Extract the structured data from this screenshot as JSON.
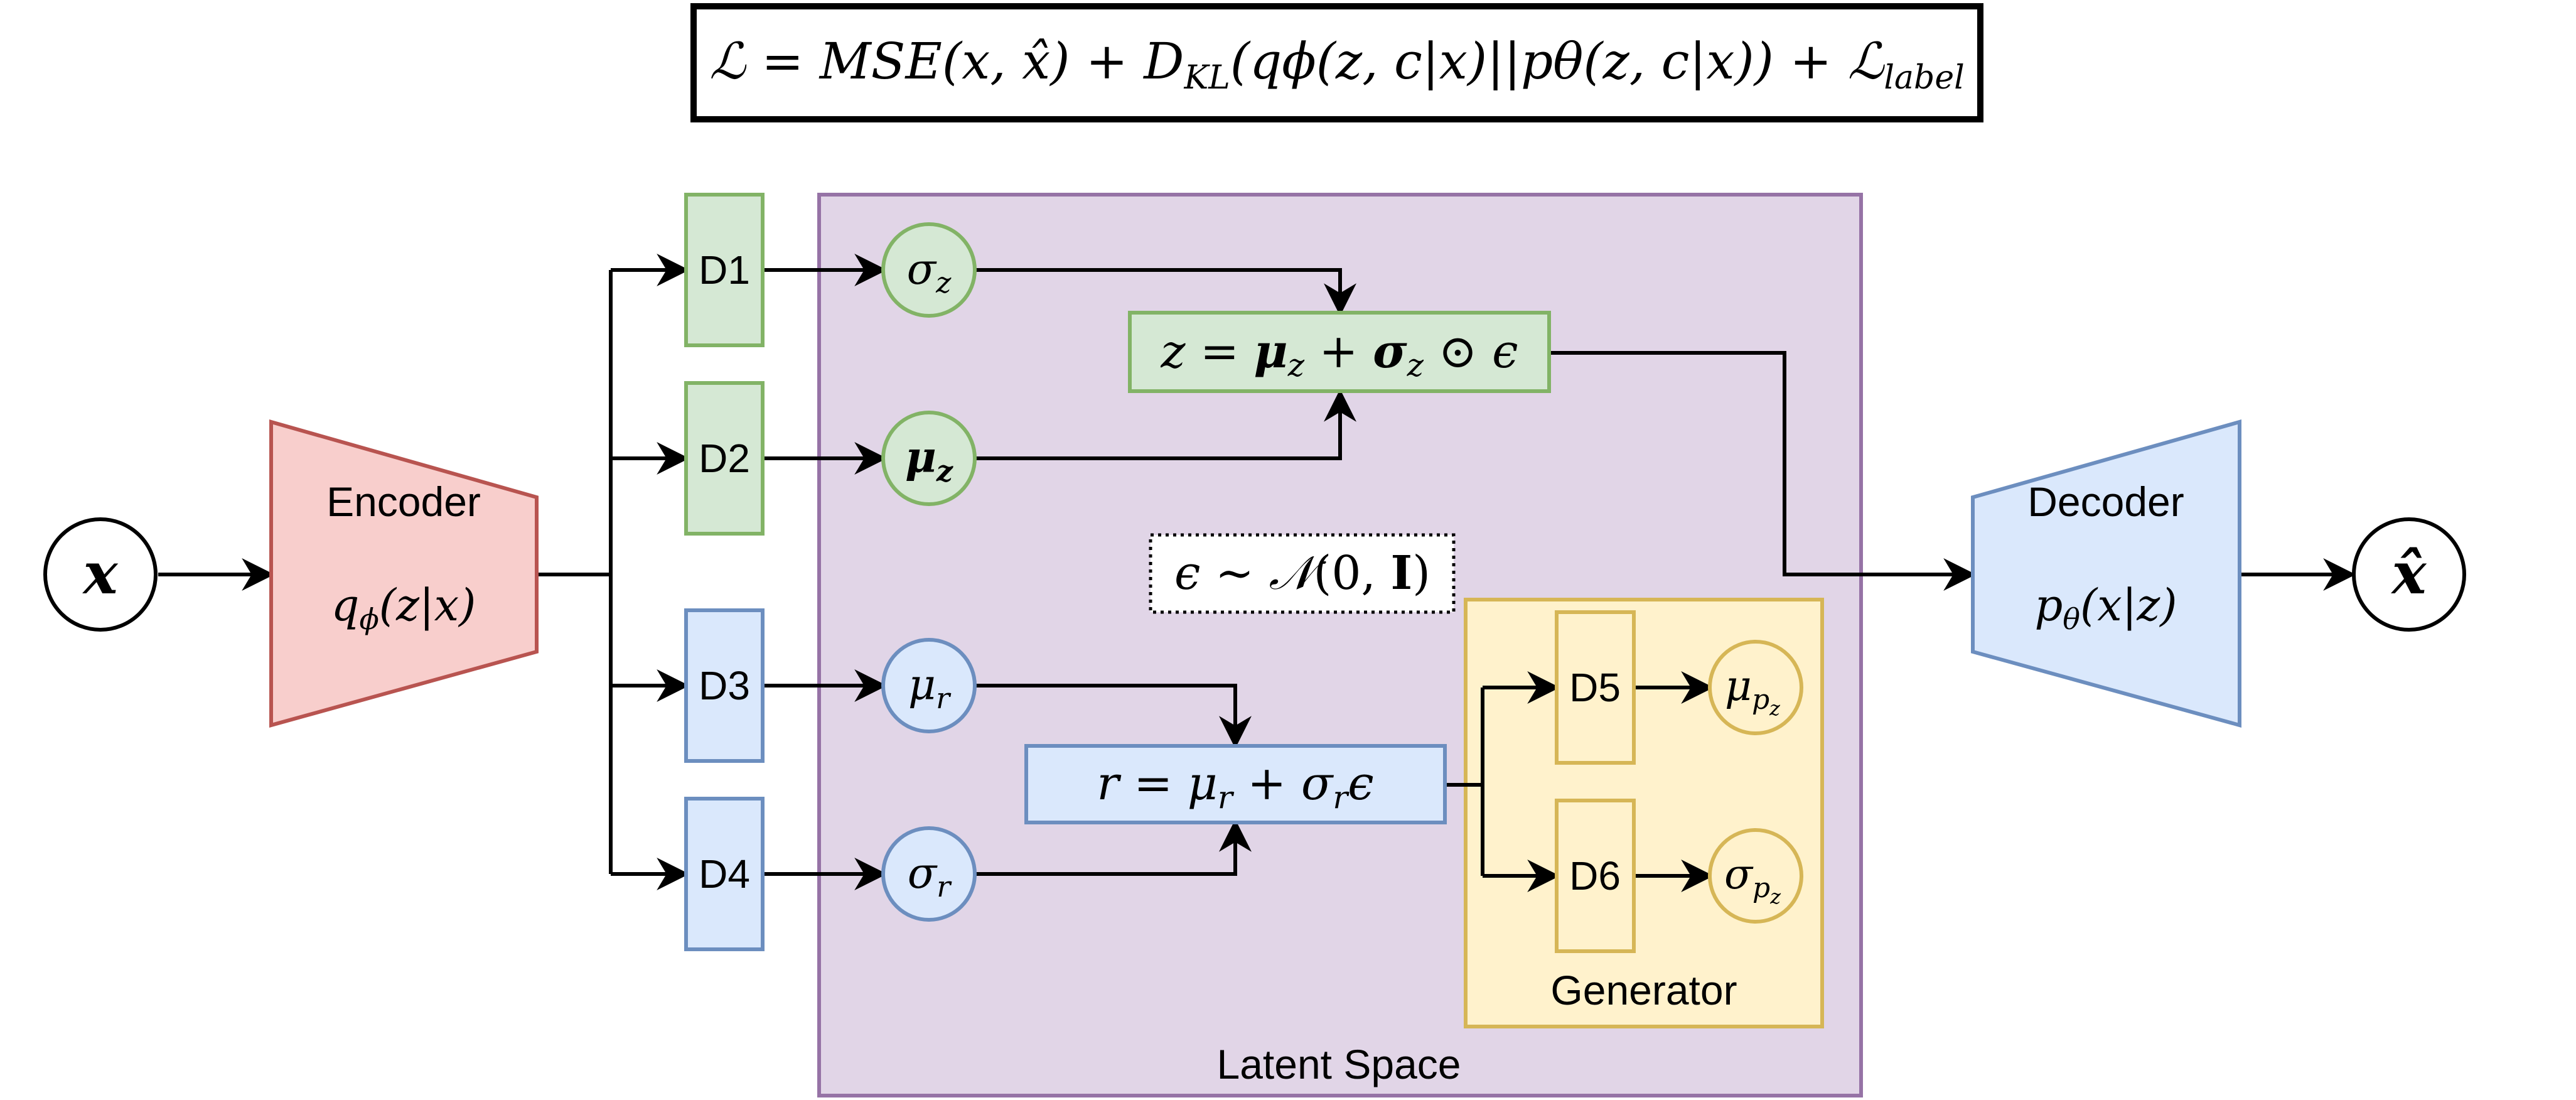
{
  "loss": {
    "L": "ℒ",
    "eq": " = ",
    "mse": "MSE",
    "mse_args": "(x, x̂)",
    "plus1": " + ",
    "D": "D",
    "KL": "KL",
    "kl_args": "(qϕ(z, c|x)||pθ(z, c|x))",
    "plus2": " + ",
    "L2": "ℒ",
    "label": "label"
  },
  "input": {
    "symbol": "x"
  },
  "output": {
    "symbol": "x̂"
  },
  "encoder": {
    "title": "Encoder",
    "q": "q",
    "sub": "ϕ",
    "args": "(z|x)"
  },
  "decoder": {
    "title": "Decoder",
    "p": "p",
    "sub": "θ",
    "args": "(x|z)"
  },
  "dense_layers": {
    "d1": "D1",
    "d2": "D2",
    "d3": "D3",
    "d4": "D4",
    "d5": "D5",
    "d6": "D6"
  },
  "nodes": {
    "sigma_z": {
      "base": "σ",
      "sub": "z"
    },
    "mu_z": {
      "base": "μ",
      "sub": "z"
    },
    "mu_r": {
      "base": "μ",
      "sub": "r"
    },
    "sigma_r": {
      "base": "σ",
      "sub": "r"
    },
    "mu_pz": {
      "base": "μ",
      "sub": "p",
      "subsub": "z"
    },
    "sigma_pz": {
      "base": "σ",
      "sub": "p",
      "subsub": "z"
    }
  },
  "z_equation": {
    "lhs": "z = ",
    "mu": "μ",
    "mu_sub": "z",
    "plus": " + ",
    "sigma": "σ",
    "sigma_sub": "z",
    "odot": " ⊙ ",
    "eps": "ϵ"
  },
  "r_equation": {
    "lhs": "r = ",
    "mu": "μ",
    "mu_sub": "r",
    "plus": " + ",
    "sigma": "σ",
    "sigma_sub": "r",
    "eps": "ϵ"
  },
  "epsilon_dist": {
    "eps": "ϵ",
    "sim": " ∼ ",
    "N": "𝒩",
    "args_open": "(0, ",
    "I": "I",
    "args_close": ")"
  },
  "groups": {
    "latent_space": "Latent Space",
    "generator": "Generator"
  },
  "colors": {
    "green_fill": "#d5e8d4",
    "green_stroke": "#82b366",
    "blue_fill": "#dae8fc",
    "blue_stroke": "#6c8ebf",
    "red_fill": "#f8cecc",
    "red_stroke": "#b85450",
    "purple_fill": "#e1d5e7",
    "purple_stroke": "#9673a6",
    "yellow_fill": "#fff2cc",
    "yellow_stroke": "#d6b656"
  }
}
